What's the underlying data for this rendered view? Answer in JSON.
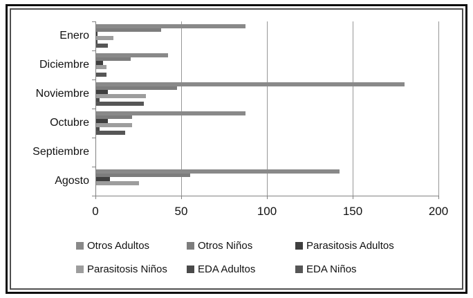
{
  "chart_data": {
    "type": "bar",
    "orientation": "horizontal",
    "title": "",
    "xlabel": "",
    "ylabel": "",
    "xlim": [
      0,
      200
    ],
    "xticks": [
      "0",
      "50",
      "100",
      "150",
      "200"
    ],
    "xtick_values": [
      0,
      50,
      100,
      150,
      200
    ],
    "grid": true,
    "legend_position": "bottom",
    "categories": [
      "Enero",
      "Diciembre",
      "Noviembre",
      "Octubre",
      "Septiembre",
      "Agosto"
    ],
    "series": [
      {
        "name": "Otros Adultos",
        "color": "#898989",
        "values": [
          87,
          42,
          180,
          87,
          0,
          142
        ]
      },
      {
        "name": "Otros Niños",
        "color": "#7d7d7d",
        "values": [
          38,
          20,
          47,
          21,
          0,
          55
        ]
      },
      {
        "name": "Parasitosis Adultos",
        "color": "#3f3f3f",
        "values": [
          1,
          4,
          7,
          7,
          0,
          8
        ]
      },
      {
        "name": "Parasitosis Niños",
        "color": "#9d9d9d",
        "values": [
          10,
          6,
          29,
          21,
          0,
          25
        ]
      },
      {
        "name": "EDA Adultos",
        "color": "#4a4a4a",
        "values": [
          1,
          0,
          2,
          2,
          0,
          0
        ]
      },
      {
        "name": "EDA Niños",
        "color": "#565656",
        "values": [
          7,
          6,
          28,
          17,
          0,
          0
        ]
      }
    ],
    "colors": {
      "axis_line": "#808080",
      "gridline": "#969696",
      "text": "#111111",
      "frame_outer": "#0d0d0d",
      "frame_inner": "#4f4f4f",
      "background": "#ffffff"
    }
  }
}
